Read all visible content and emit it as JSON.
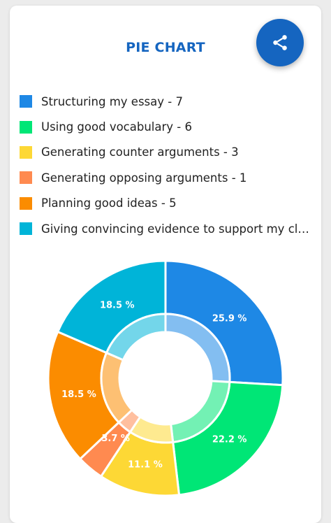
{
  "title": "PIE CHART",
  "share_icon": "share-icon",
  "colors": {
    "accent": "#1565c0",
    "background": "#ececec",
    "card": "#ffffff"
  },
  "chart_data": {
    "type": "pie",
    "style": "donut",
    "legend_position": "top",
    "categories": [
      "Structuring my essay",
      "Using good vocabulary",
      "Generating counter arguments",
      "Generating opposing arguments",
      "Planning good ideas",
      "Giving convincing evidence to support my claims..."
    ],
    "legend_labels": [
      "Structuring my essay - 7",
      "Using good vocabulary - 6",
      "Generating counter arguments - 3",
      "Generating opposing arguments - 1",
      "Planning good ideas - 5",
      "Giving convincing evidence to support my claims..."
    ],
    "values": [
      7,
      6,
      3,
      1,
      5,
      5
    ],
    "percent_labels": [
      "25.9 %",
      "22.2 %",
      "11.1 %",
      "3.7 %",
      "18.5 %",
      "18.5 %"
    ],
    "colors": [
      "#1e88e5",
      "#00e676",
      "#fdd835",
      "#ff8a50",
      "#fb8c00",
      "#00b4d8"
    ]
  }
}
